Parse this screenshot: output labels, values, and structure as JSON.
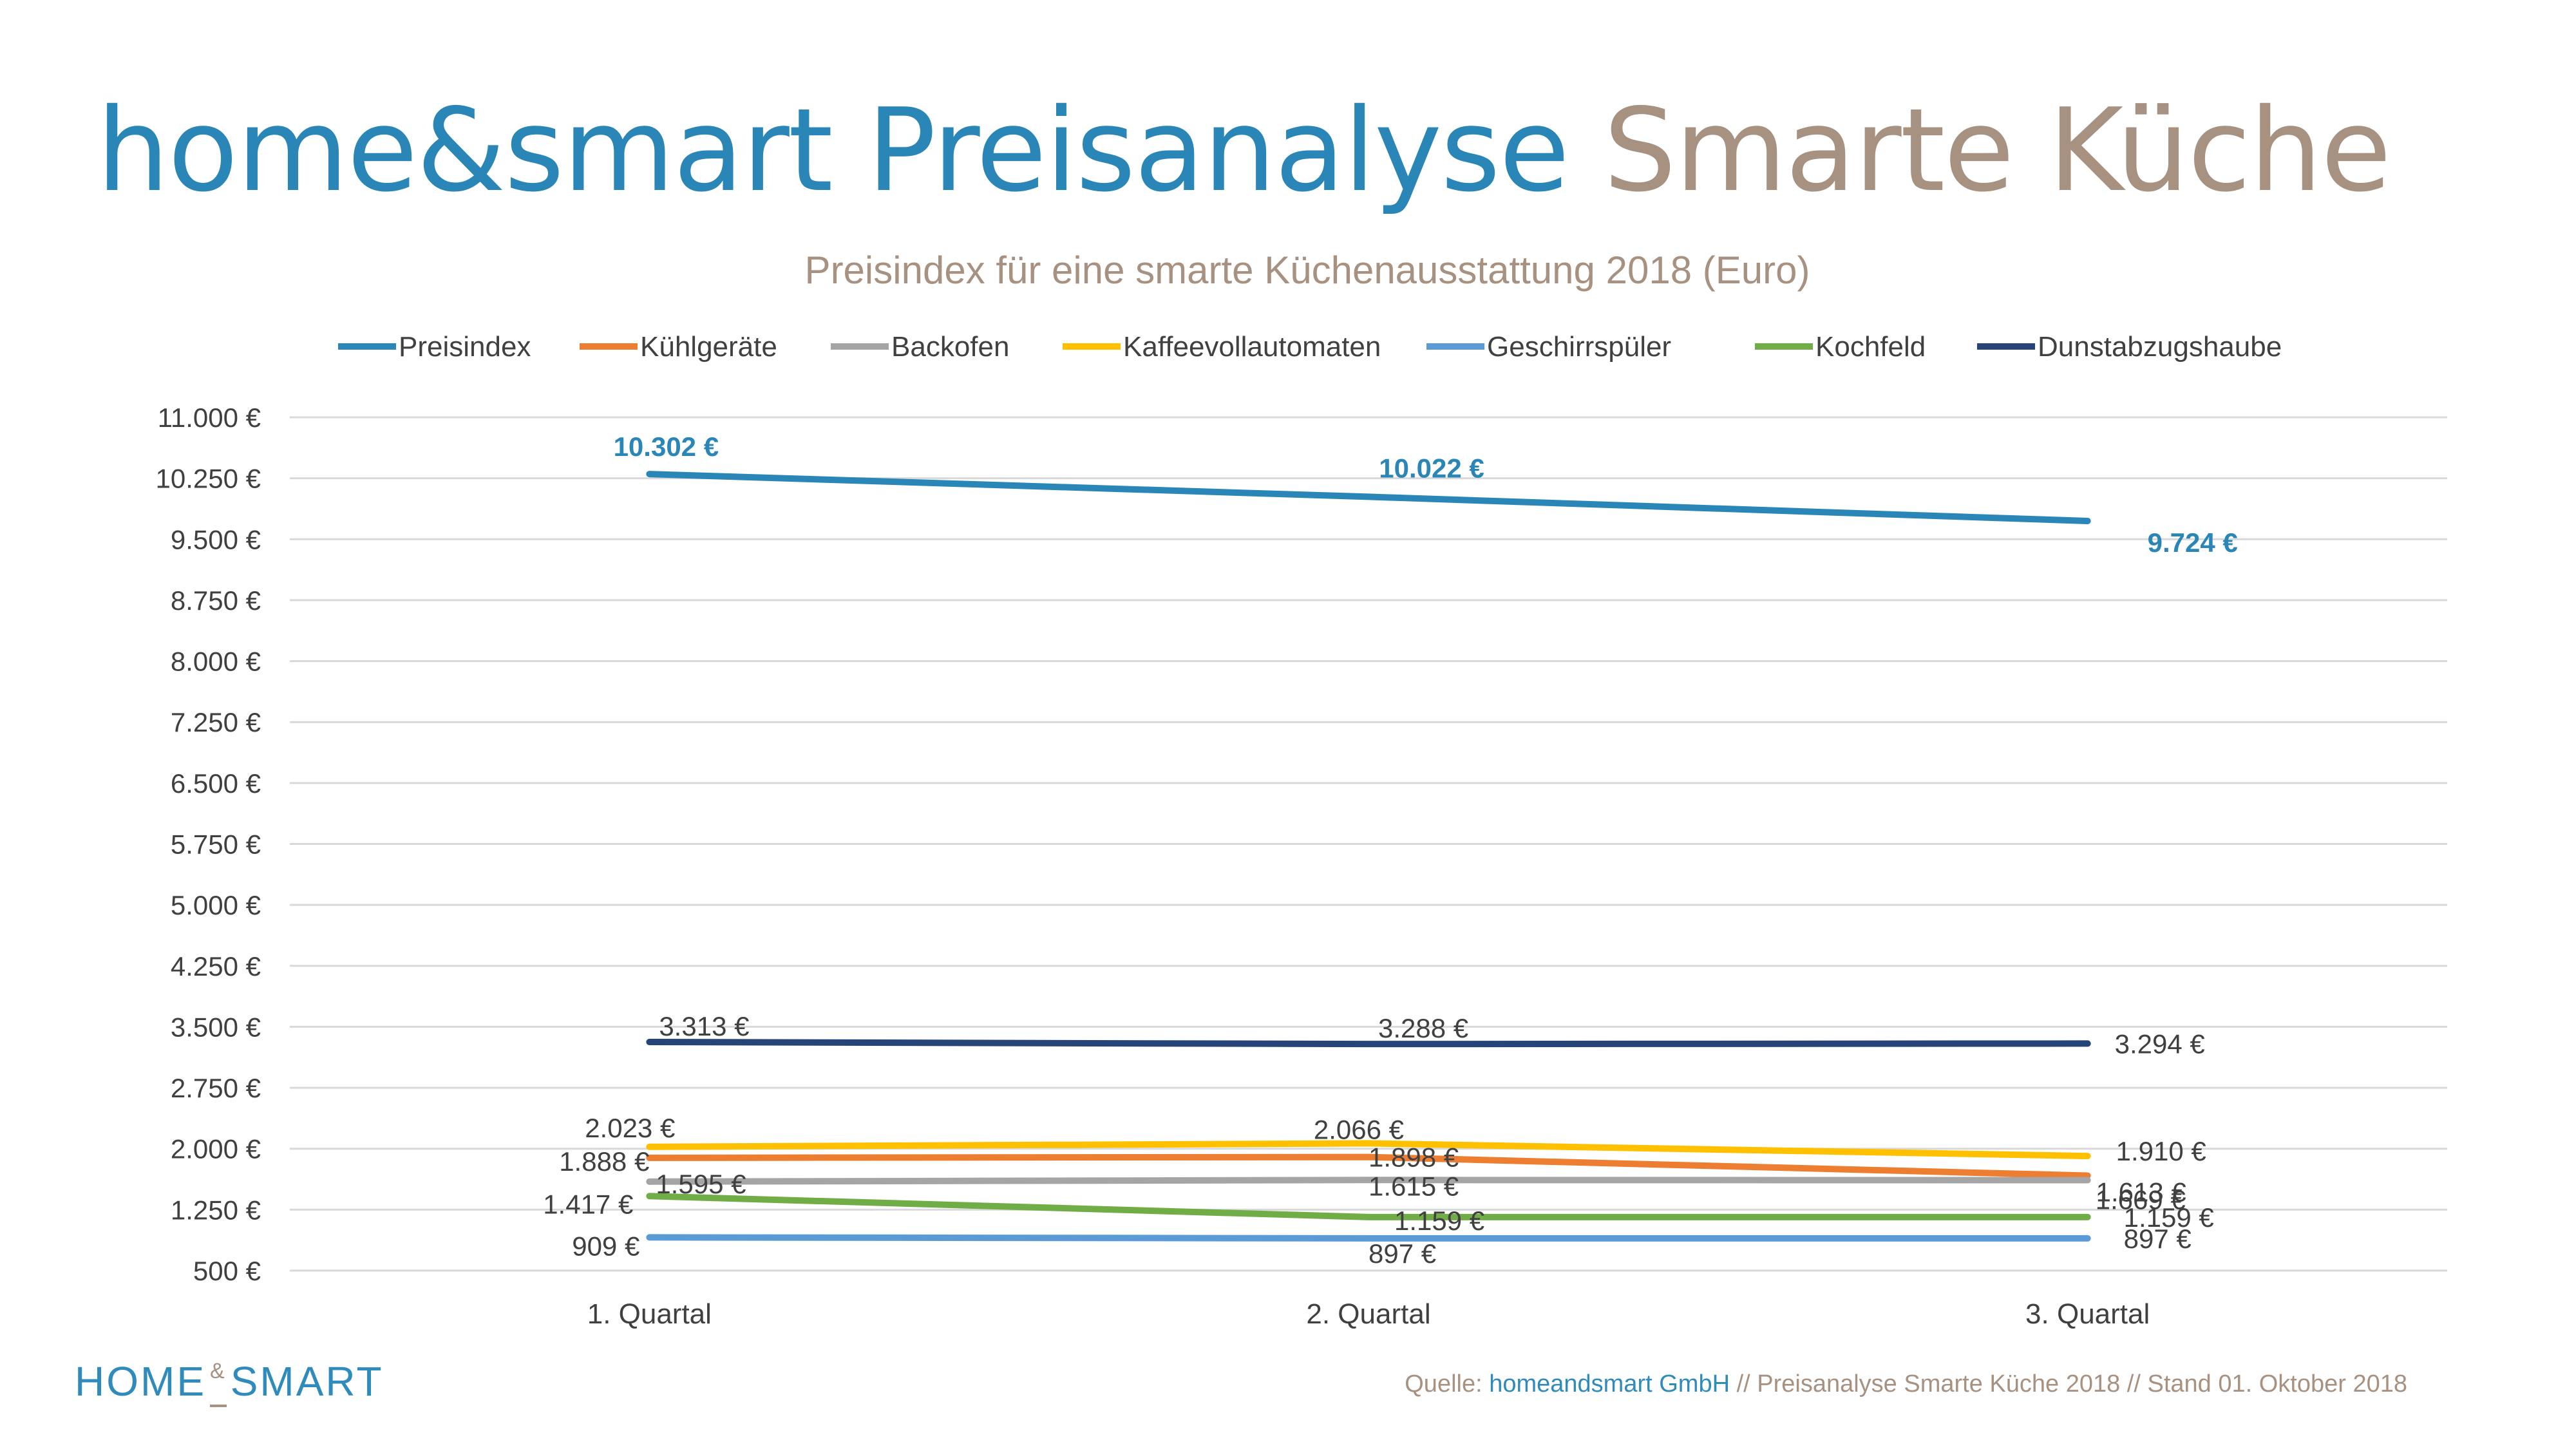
{
  "header": {
    "title_part1": "home&smart Preisanalyse",
    "title_part2": "Smarte Küche"
  },
  "chart_data": {
    "type": "line",
    "title": "Preisindex für eine smarte Küchenausstattung 2018  (Euro)",
    "xlabel": "",
    "ylabel": "",
    "categories": [
      "1. Quartal",
      "2. Quartal",
      "3. Quartal"
    ],
    "ylim": [
      500,
      11000
    ],
    "yticks": [
      500,
      1250,
      2000,
      2750,
      3500,
      4250,
      5000,
      5750,
      6500,
      7250,
      8000,
      8750,
      9500,
      10250,
      11000
    ],
    "ytick_labels": [
      "500 €",
      "1.250 €",
      "2.000 €",
      "2.750 €",
      "3.500 €",
      "4.250 €",
      "5.000 €",
      "5.750 €",
      "6.500 €",
      "7.250 €",
      "8.000 €",
      "8.750 €",
      "9.500 €",
      "10.250 €",
      "11.000 €"
    ],
    "grid": true,
    "legend_position": "top",
    "series": [
      {
        "name": "Preisindex",
        "color": "#2a86b6",
        "values": [
          10302,
          10022,
          9724
        ],
        "labels": [
          "10.302 €",
          "10.022 €",
          "9.724 €"
        ],
        "label_color": "#2a86b6",
        "label_bold": true
      },
      {
        "name": "Kühlgeräte",
        "color": "#ed7d31",
        "values": [
          1888,
          1898,
          1669
        ],
        "labels": [
          "1.888 €",
          "1.898 €",
          "1.669 €"
        ],
        "label_color": "#404040",
        "label_bold": false
      },
      {
        "name": "Backofen",
        "color": "#a5a5a5",
        "values": [
          1595,
          1615,
          1613
        ],
        "labels": [
          "1.595 €",
          "1.615 €",
          "1.613 €"
        ],
        "label_color": "#404040",
        "label_bold": false
      },
      {
        "name": "Kaffeevollautomaten",
        "color": "#ffc000",
        "values": [
          2023,
          2066,
          1910
        ],
        "labels": [
          "2.023 €",
          "2.066 €",
          "1.910 €"
        ],
        "label_color": "#404040",
        "label_bold": false
      },
      {
        "name": "Geschirrspüler",
        "color": "#5b9bd5",
        "values": [
          909,
          897,
          897
        ],
        "labels": [
          "909 €",
          "897 €",
          "897 €"
        ],
        "label_color": "#404040",
        "label_bold": false
      },
      {
        "name": "Kochfeld",
        "color": "#70ad47",
        "values": [
          1417,
          1159,
          1159
        ],
        "labels": [
          "1.417 €",
          "1.159 €",
          "1.159 €"
        ],
        "label_color": "#404040",
        "label_bold": false
      },
      {
        "name": "Dunstabzugshaube",
        "color": "#264478",
        "values": [
          3313,
          3288,
          3294
        ],
        "labels": [
          "3.313 €",
          "3.288 €",
          "3.294 €"
        ],
        "label_color": "#404040",
        "label_bold": false
      }
    ]
  },
  "footer": {
    "logo_part1": "HOME",
    "logo_amp": "&",
    "logo_part2": "SMART",
    "source_prefix": "Quelle: ",
    "source_company": "homeandsmart GmbH",
    "source_rest": " // Preisanalyse Smarte Küche 2018 // Stand 01. Oktober 2018"
  }
}
